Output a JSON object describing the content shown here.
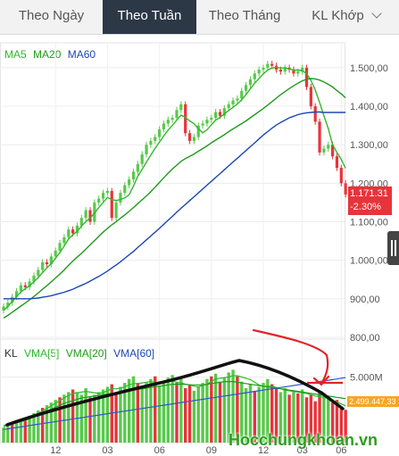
{
  "tabs": [
    {
      "label": "Theo Ngày"
    },
    {
      "label": "Theo Tuần"
    },
    {
      "label": "Theo Tháng"
    },
    {
      "label": "KL Khớp"
    }
  ],
  "legend": {
    "ma5": "MA5",
    "ma20": "MA20",
    "ma60": "MA60",
    "kl": "KL",
    "vma5": "VMA[5]",
    "vma20": "VMA[20]",
    "vma60": "VMA[60]"
  },
  "price_tag": {
    "price": "1.171.31",
    "change": "-2.30%"
  },
  "volume_tag": "2.499.447,33",
  "watermark": "Hocchungkhoan.vn",
  "colors": {
    "up": "#58c94a",
    "down": "#e8333a",
    "ma5": "#2fb82a",
    "ma20": "#1f9b1a",
    "ma60": "#1b47b5",
    "vma60": "#3355cc",
    "active_tab": "#2c3846",
    "annotation": "#e0242a"
  },
  "chart_data": [
    {
      "type": "candlestick",
      "y_ticks": [
        "1.500,00",
        "1.400,00",
        "1.300,00",
        "1.200,00",
        "1.100,00",
        "1.000,00",
        "900,00",
        "800,00"
      ],
      "ylim": [
        800,
        1560
      ],
      "x_ticks": [
        "12",
        "03",
        "06",
        "09",
        "12",
        "03",
        "06"
      ],
      "close": [
        880,
        890,
        905,
        920,
        935,
        930,
        945,
        960,
        975,
        995,
        990,
        1010,
        1025,
        1045,
        1060,
        1080,
        1070,
        1090,
        1110,
        1130,
        1100,
        1150,
        1160,
        1175,
        1180,
        1110,
        1150,
        1175,
        1195,
        1210,
        1230,
        1250,
        1275,
        1300,
        1310,
        1320,
        1340,
        1355,
        1365,
        1370,
        1390,
        1405,
        1330,
        1310,
        1320,
        1350,
        1355,
        1365,
        1370,
        1385,
        1375,
        1395,
        1405,
        1415,
        1420,
        1440,
        1455,
        1470,
        1485,
        1495,
        1500,
        1510,
        1505,
        1495,
        1490,
        1500,
        1495,
        1485,
        1490,
        1500,
        1450,
        1400,
        1360,
        1280,
        1290,
        1300,
        1270,
        1240,
        1200,
        1171
      ],
      "series": [
        {
          "name": "MA5",
          "values": [
            870,
            880,
            893,
            906,
            918,
            926,
            934,
            944,
            955,
            968,
            980,
            991,
            1005,
            1020,
            1037,
            1055,
            1066,
            1075,
            1089,
            1100,
            1110,
            1122,
            1137,
            1150,
            1163,
            1158,
            1155,
            1158,
            1162,
            1170,
            1193,
            1218,
            1236,
            1255,
            1273,
            1291,
            1307,
            1323,
            1338,
            1350,
            1364,
            1377,
            1371,
            1362,
            1355,
            1342,
            1331,
            1339,
            1352,
            1364,
            1371,
            1380,
            1389,
            1397,
            1406,
            1417,
            1430,
            1445,
            1460,
            1472,
            1484,
            1494,
            1499,
            1501,
            1499,
            1500,
            1497,
            1494,
            1494,
            1492,
            1485,
            1467,
            1442,
            1410,
            1375,
            1342,
            1300,
            1280,
            1262,
            1239
          ]
        },
        {
          "name": "MA20",
          "values": [
            850,
            857,
            865,
            873,
            881,
            889,
            897,
            906,
            915,
            925,
            934,
            944,
            954,
            964,
            975,
            987,
            998,
            1008,
            1018,
            1029,
            1040,
            1051,
            1062,
            1073,
            1083,
            1092,
            1100,
            1109,
            1118,
            1127,
            1137,
            1147,
            1157,
            1167,
            1178,
            1190,
            1202,
            1214,
            1226,
            1237,
            1247,
            1257,
            1264,
            1270,
            1276,
            1283,
            1290,
            1297,
            1305,
            1312,
            1319,
            1326,
            1334,
            1341,
            1348,
            1355,
            1362,
            1370,
            1378,
            1386,
            1394,
            1403,
            1412,
            1421,
            1430,
            1438,
            1446,
            1453,
            1460,
            1466,
            1470,
            1472,
            1471,
            1468,
            1463,
            1457,
            1450,
            1441,
            1432,
            1422
          ]
        },
        {
          "name": "MA60",
          "values": [
            900,
            900,
            900,
            900,
            900,
            900,
            900,
            901,
            902,
            904,
            906,
            908,
            911,
            914,
            917,
            921,
            925,
            930,
            935,
            940,
            946,
            952,
            958,
            965,
            972,
            980,
            988,
            996,
            1005,
            1014,
            1023,
            1033,
            1043,
            1053,
            1063,
            1073,
            1083,
            1093,
            1104,
            1114,
            1125,
            1135,
            1145,
            1155,
            1165,
            1175,
            1185,
            1195,
            1205,
            1215,
            1225,
            1235,
            1245,
            1255,
            1265,
            1275,
            1285,
            1295,
            1305,
            1315,
            1325,
            1334,
            1343,
            1351,
            1358,
            1364,
            1370,
            1374,
            1378,
            1381,
            1383,
            1384,
            1385,
            1385,
            1384,
            1384,
            1384,
            1384,
            1384,
            1384
          ]
        }
      ]
    },
    {
      "type": "bar",
      "y_ticks": [
        "5.000M"
      ],
      "ylim": [
        0,
        6800000
      ],
      "bar_colors": [
        "up",
        "up",
        "down",
        "up",
        "up",
        "down",
        "up",
        "up",
        "up",
        "down",
        "up",
        "up",
        "up",
        "down",
        "up",
        "up",
        "down",
        "up",
        "up",
        "up",
        "down",
        "up",
        "up",
        "up",
        "up",
        "down",
        "down",
        "up",
        "up",
        "up",
        "up",
        "down",
        "up",
        "up",
        "up",
        "down",
        "up",
        "up",
        "up",
        "up",
        "down",
        "up",
        "down",
        "down",
        "up",
        "up",
        "up",
        "up",
        "down",
        "up",
        "down",
        "up",
        "up",
        "up",
        "down",
        "up",
        "up",
        "up",
        "down",
        "up",
        "up",
        "up",
        "down",
        "down",
        "up",
        "up",
        "down",
        "up",
        "down",
        "up",
        "down",
        "down",
        "down",
        "down",
        "up",
        "up",
        "down",
        "down",
        "down",
        "down"
      ],
      "volume": [
        1150000,
        1300000,
        1500000,
        1650000,
        1750000,
        1900000,
        2050000,
        2250000,
        2450000,
        2650000,
        2850000,
        3050000,
        3250000,
        3450000,
        3650000,
        3850000,
        4050000,
        3850000,
        3650000,
        4150000,
        3450000,
        3650000,
        3850000,
        4050000,
        4250000,
        4450000,
        3850000,
        4250000,
        4550000,
        4850000,
        5050000,
        4550000,
        4250000,
        4550000,
        4850000,
        5050000,
        4350000,
        4650000,
        4950000,
        5150000,
        4550000,
        4850000,
        4150000,
        4450000,
        3950000,
        4250000,
        4550000,
        4850000,
        5050000,
        5250000,
        4650000,
        4950000,
        5350000,
        5550000,
        5050000,
        4650000,
        4150000,
        4450000,
        3950000,
        4250000,
        4550000,
        4850000,
        4450000,
        4150000,
        3850000,
        4150000,
        3650000,
        3950000,
        3750000,
        4050000,
        3450000,
        3650000,
        3150000,
        3850000,
        3650000,
        3350000,
        3050000,
        3250000,
        2750000,
        2499447
      ],
      "series": [
        {
          "name": "VMA[5]",
          "values": [
            1200000,
            1300000,
            1400000,
            1500000,
            1600000,
            1700000,
            1800000,
            2000000,
            2200000,
            2400000,
            2600000,
            2800000,
            3000000,
            3200000,
            3400000,
            3600000,
            3750000,
            3800000,
            3850000,
            3900000,
            3850000,
            3800000,
            3750000,
            3800000,
            3950000,
            4100000,
            4100000,
            4150000,
            4250000,
            4400000,
            4500000,
            4500000,
            4550000,
            4600000,
            4650000,
            4600000,
            4550000,
            4600000,
            4650000,
            4700000,
            4600000,
            4550000,
            4450000,
            4400000,
            4300000,
            4250000,
            4350000,
            4450000,
            4650000,
            4850000,
            4900000,
            4950000,
            5000000,
            5100000,
            5100000,
            5000000,
            4900000,
            4800000,
            4600000,
            4400000,
            4300000,
            4300000,
            4300000,
            4200000,
            4100000,
            4000000,
            3950000,
            3900000,
            3850000,
            3800000,
            3750000,
            3650000,
            3550000,
            3500000,
            3450000,
            3350000,
            3200000,
            3100000,
            2950000,
            2800000
          ]
        },
        {
          "name": "VMA[20]",
          "values": [
            1300000,
            1400000,
            1500000,
            1600000,
            1700000,
            1800000,
            1900000,
            2000000,
            2100000,
            2250000,
            2400000,
            2550000,
            2700000,
            2850000,
            3000000,
            3100000,
            3200000,
            3300000,
            3400000,
            3450000,
            3500000,
            3550000,
            3600000,
            3650000,
            3700000,
            3750000,
            3800000,
            3850000,
            3900000,
            3950000,
            4000000,
            4050000,
            4100000,
            4150000,
            4200000,
            4250000,
            4300000,
            4350000,
            4400000,
            4450000,
            4450000,
            4450000,
            4450000,
            4400000,
            4400000,
            4400000,
            4400000,
            4450000,
            4500000,
            4550000,
            4600000,
            4650000,
            4650000,
            4650000,
            4600000,
            4550000,
            4500000,
            4450000,
            4400000,
            4350000,
            4300000,
            4250000,
            4200000,
            4150000,
            4100000,
            4050000,
            4000000,
            3950000,
            3900000,
            3850000,
            3800000,
            3750000,
            3700000,
            3650000,
            3600000,
            3550000,
            3500000,
            3450000,
            3400000,
            3350000
          ]
        },
        {
          "name": "VMA[60]",
          "values": [
            1000000,
            1050000,
            1100000,
            1150000,
            1200000,
            1250000,
            1300000,
            1350000,
            1400000,
            1450000,
            1500000,
            1550000,
            1600000,
            1650000,
            1700000,
            1750000,
            1800000,
            1850000,
            1900000,
            1950000,
            2000000,
            2050000,
            2100000,
            2150000,
            2200000,
            2250000,
            2300000,
            2350000,
            2400000,
            2450000,
            2500000,
            2550000,
            2600000,
            2650000,
            2700000,
            2750000,
            2800000,
            2850000,
            2900000,
            2950000,
            3000000,
            3050000,
            3100000,
            3150000,
            3200000,
            3250000,
            3300000,
            3350000,
            3400000,
            3450000,
            3500000,
            3550000,
            3600000,
            3650000,
            3700000,
            3750000,
            3800000,
            3850000,
            3900000,
            3950000,
            4000000,
            4050000,
            4100000,
            4150000,
            4200000,
            4250000,
            4300000,
            4350000,
            4400000,
            4450000,
            4500000,
            4550000,
            4600000,
            4650000,
            4700000,
            4750000,
            4800000,
            4850000,
            4900000,
            4950000
          ]
        }
      ]
    }
  ]
}
